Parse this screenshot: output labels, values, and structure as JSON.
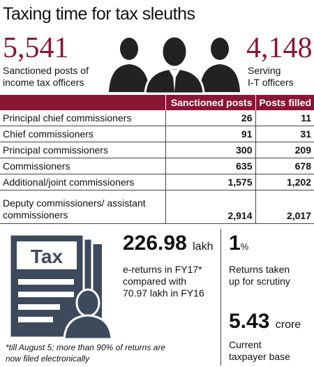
{
  "title": "Taxing time for tax sleuths",
  "top_left": {
    "value": "5,541",
    "label_line1": "Sanctioned posts of",
    "label_line2": "income tax officers"
  },
  "top_right": {
    "value": "4,148",
    "label_line1": "Serving",
    "label_line2": "I-T officers"
  },
  "people_icon": "three-officers-icon",
  "table": {
    "headers": [
      "",
      "Sanctioned posts",
      "Posts filled"
    ],
    "rows": [
      {
        "label": "Principal chief commissioners",
        "sanctioned": "26",
        "filled": "11"
      },
      {
        "label": "Chief commissioners",
        "sanctioned": "91",
        "filled": "31"
      },
      {
        "label": "Principal commissioners",
        "sanctioned": "300",
        "filled": "209"
      },
      {
        "label": "Commissioners",
        "sanctioned": "635",
        "filled": "678"
      },
      {
        "label": "Additional/joint commissioners",
        "sanctioned": "1,575",
        "filled": "1,202"
      },
      {
        "label": "Deputy commissioners/ assistant commissioners",
        "sanctioned": "2,914",
        "filled": "2,017"
      }
    ]
  },
  "tax_icon": {
    "name": "tax-document-icon",
    "label": "Tax"
  },
  "ereturns": {
    "value": "226.98",
    "unit": "lakh",
    "desc_line1": "e-returns in FY17*",
    "desc_line2": "compared with",
    "desc_line3": "70.97 lakh in FY16"
  },
  "scrutiny": {
    "value": "1",
    "unit": "%",
    "desc_line1": "Returns taken",
    "desc_line2": "up for scrutiny"
  },
  "taxpayer": {
    "value": "5.43",
    "unit": "crore",
    "desc_line1": "Current",
    "desc_line2": "taxpayer base"
  },
  "footnote_line1": "*till August 5; more than 90% of returns are",
  "footnote_line2": "now filed electronically",
  "colors": {
    "accent": "#8b1535",
    "icon": "#3d4a5c"
  }
}
